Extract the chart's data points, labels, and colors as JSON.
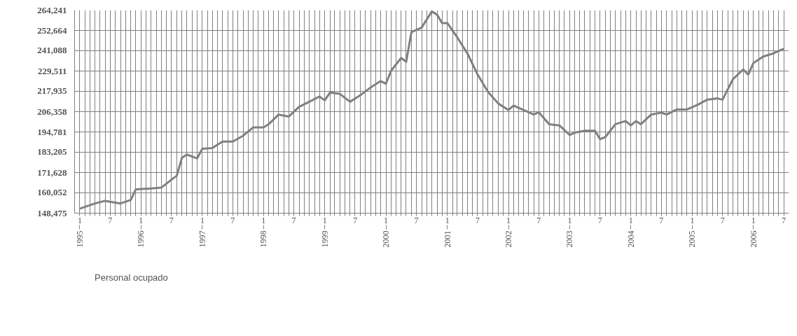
{
  "chart_data": {
    "type": "line",
    "x": [
      "1995-01",
      "1995-04",
      "1995-06",
      "1995-09",
      "1995-11",
      "1995-12",
      "1996-03",
      "1996-05",
      "1996-07",
      "1996-08",
      "1996-09",
      "1996-10",
      "1996-12",
      "1997-01",
      "1997-03",
      "1997-05",
      "1997-07",
      "1997-09",
      "1997-11",
      "1998-01",
      "1998-02",
      "1998-04",
      "1998-06",
      "1998-08",
      "1998-10",
      "1998-12",
      "1999-01",
      "1999-02",
      "1999-04",
      "1999-06",
      "1999-08",
      "1999-10",
      "1999-12",
      "2000-01",
      "2000-02",
      "2000-04",
      "2000-05",
      "2000-06",
      "2000-08",
      "2000-10",
      "2000-11",
      "2000-12",
      "2001-01",
      "2001-03",
      "2001-05",
      "2001-07",
      "2001-09",
      "2001-11",
      "2002-01",
      "2002-02",
      "2002-04",
      "2002-06",
      "2002-07",
      "2002-09",
      "2002-11",
      "2003-01",
      "2003-02",
      "2003-04",
      "2003-06",
      "2003-07",
      "2003-08",
      "2003-10",
      "2003-12",
      "2004-01",
      "2004-02",
      "2004-03",
      "2004-05",
      "2004-07",
      "2004-08",
      "2004-10",
      "2004-12",
      "2005-02",
      "2005-04",
      "2005-06",
      "2005-07",
      "2005-09",
      "2005-11",
      "2005-12",
      "2006-01",
      "2006-03",
      "2006-05",
      "2006-07"
    ],
    "series": [
      {
        "name": "Personal ocupado",
        "color": "#808080",
        "values": [
          151000,
          154000,
          155500,
          154000,
          156000,
          162000,
          162500,
          163000,
          167600,
          169800,
          180000,
          181900,
          179700,
          185200,
          185600,
          189300,
          189300,
          192600,
          197400,
          197400,
          199200,
          204700,
          203600,
          209100,
          212000,
          215000,
          212800,
          217200,
          216500,
          212000,
          215700,
          220100,
          223800,
          222300,
          229700,
          237000,
          234800,
          251700,
          254300,
          263500,
          261700,
          256900,
          256900,
          248800,
          239600,
          227500,
          217600,
          211000,
          207300,
          209800,
          207300,
          204700,
          206000,
          199200,
          198500,
          193000,
          194400,
          195500,
          195500,
          190700,
          191800,
          199200,
          201000,
          198500,
          201000,
          199200,
          204700,
          205800,
          204700,
          207600,
          207600,
          210200,
          213200,
          213900,
          213200,
          224900,
          230400,
          227500,
          234100,
          237800,
          239600,
          242200
        ]
      }
    ],
    "ylim": [
      148475,
      264241
    ],
    "yticks": [
      {
        "value": 148475,
        "label": "148,475"
      },
      {
        "value": 160052,
        "label": "160,052"
      },
      {
        "value": 171628,
        "label": "171,628"
      },
      {
        "value": 183205,
        "label": "183,205"
      },
      {
        "value": 194781,
        "label": "194,781"
      },
      {
        "value": 206358,
        "label": "206,358"
      },
      {
        "value": 217935,
        "label": "217,935"
      },
      {
        "value": 229511,
        "label": "229,511"
      },
      {
        "value": 241088,
        "label": "241,088"
      },
      {
        "value": 252664,
        "label": "252,664"
      },
      {
        "value": 264241,
        "label": "264,241"
      }
    ],
    "xlim": [
      "1994-12",
      "2006-08"
    ],
    "xticks": [
      {
        "value": "1995-01",
        "label": "1"
      },
      {
        "value": "1995-02",
        "label": null
      },
      {
        "value": "1995-03",
        "label": null
      },
      {
        "value": "1995-04",
        "label": null
      },
      {
        "value": "1995-05",
        "label": null
      },
      {
        "value": "1995-06",
        "label": null
      },
      {
        "value": "1995-07",
        "label": "7"
      },
      {
        "value": "1995-08",
        "label": null
      },
      {
        "value": "1995-09",
        "label": null
      },
      {
        "value": "1995-10",
        "label": null
      },
      {
        "value": "1995-11",
        "label": null
      },
      {
        "value": "1995-12",
        "label": null
      },
      {
        "value": "1996-01",
        "label": "1"
      },
      {
        "value": "1996-02",
        "label": null
      },
      {
        "value": "1996-03",
        "label": null
      },
      {
        "value": "1996-04",
        "label": null
      },
      {
        "value": "1996-05",
        "label": null
      },
      {
        "value": "1996-06",
        "label": null
      },
      {
        "value": "1996-07",
        "label": "7"
      },
      {
        "value": "1996-08",
        "label": null
      },
      {
        "value": "1996-09",
        "label": null
      },
      {
        "value": "1996-10",
        "label": null
      },
      {
        "value": "1996-11",
        "label": null
      },
      {
        "value": "1996-12",
        "label": null
      },
      {
        "value": "1997-01",
        "label": "1"
      },
      {
        "value": "1997-02",
        "label": null
      },
      {
        "value": "1997-03",
        "label": null
      },
      {
        "value": "1997-04",
        "label": null
      },
      {
        "value": "1997-05",
        "label": null
      },
      {
        "value": "1997-06",
        "label": null
      },
      {
        "value": "1997-07",
        "label": "7"
      },
      {
        "value": "1997-08",
        "label": null
      },
      {
        "value": "1997-09",
        "label": null
      },
      {
        "value": "1997-10",
        "label": null
      },
      {
        "value": "1997-11",
        "label": null
      },
      {
        "value": "1997-12",
        "label": null
      },
      {
        "value": "1998-01",
        "label": "1"
      },
      {
        "value": "1998-02",
        "label": null
      },
      {
        "value": "1998-03",
        "label": null
      },
      {
        "value": "1998-04",
        "label": null
      },
      {
        "value": "1998-05",
        "label": null
      },
      {
        "value": "1998-06",
        "label": null
      },
      {
        "value": "1998-07",
        "label": "7"
      },
      {
        "value": "1998-08",
        "label": null
      },
      {
        "value": "1998-09",
        "label": null
      },
      {
        "value": "1998-10",
        "label": null
      },
      {
        "value": "1998-11",
        "label": null
      },
      {
        "value": "1998-12",
        "label": null
      },
      {
        "value": "1999-01",
        "label": "1"
      },
      {
        "value": "1999-02",
        "label": null
      },
      {
        "value": "1999-03",
        "label": null
      },
      {
        "value": "1999-04",
        "label": null
      },
      {
        "value": "1999-05",
        "label": null
      },
      {
        "value": "1999-06",
        "label": null
      },
      {
        "value": "1999-07",
        "label": "7"
      },
      {
        "value": "1999-08",
        "label": null
      },
      {
        "value": "1999-09",
        "label": null
      },
      {
        "value": "1999-10",
        "label": null
      },
      {
        "value": "1999-11",
        "label": null
      },
      {
        "value": "1999-12",
        "label": null
      },
      {
        "value": "2000-01",
        "label": "1"
      },
      {
        "value": "2000-02",
        "label": null
      },
      {
        "value": "2000-03",
        "label": null
      },
      {
        "value": "2000-04",
        "label": null
      },
      {
        "value": "2000-05",
        "label": null
      },
      {
        "value": "2000-06",
        "label": null
      },
      {
        "value": "2000-07",
        "label": "7"
      },
      {
        "value": "2000-08",
        "label": null
      },
      {
        "value": "2000-09",
        "label": null
      },
      {
        "value": "2000-10",
        "label": null
      },
      {
        "value": "2000-11",
        "label": null
      },
      {
        "value": "2000-12",
        "label": null
      },
      {
        "value": "2001-01",
        "label": "1"
      },
      {
        "value": "2001-02",
        "label": null
      },
      {
        "value": "2001-03",
        "label": null
      },
      {
        "value": "2001-04",
        "label": null
      },
      {
        "value": "2001-05",
        "label": null
      },
      {
        "value": "2001-06",
        "label": null
      },
      {
        "value": "2001-07",
        "label": "7"
      },
      {
        "value": "2001-08",
        "label": null
      },
      {
        "value": "2001-09",
        "label": null
      },
      {
        "value": "2001-10",
        "label": null
      },
      {
        "value": "2001-11",
        "label": null
      },
      {
        "value": "2001-12",
        "label": null
      },
      {
        "value": "2002-01",
        "label": "1"
      },
      {
        "value": "2002-02",
        "label": null
      },
      {
        "value": "2002-03",
        "label": null
      },
      {
        "value": "2002-04",
        "label": null
      },
      {
        "value": "2002-05",
        "label": null
      },
      {
        "value": "2002-06",
        "label": null
      },
      {
        "value": "2002-07",
        "label": "7"
      },
      {
        "value": "2002-08",
        "label": null
      },
      {
        "value": "2002-09",
        "label": null
      },
      {
        "value": "2002-10",
        "label": null
      },
      {
        "value": "2002-11",
        "label": null
      },
      {
        "value": "2002-12",
        "label": null
      },
      {
        "value": "2003-01",
        "label": "1"
      },
      {
        "value": "2003-02",
        "label": null
      },
      {
        "value": "2003-03",
        "label": null
      },
      {
        "value": "2003-04",
        "label": null
      },
      {
        "value": "2003-05",
        "label": null
      },
      {
        "value": "2003-06",
        "label": null
      },
      {
        "value": "2003-07",
        "label": "7"
      },
      {
        "value": "2003-08",
        "label": null
      },
      {
        "value": "2003-09",
        "label": null
      },
      {
        "value": "2003-10",
        "label": null
      },
      {
        "value": "2003-11",
        "label": null
      },
      {
        "value": "2003-12",
        "label": null
      },
      {
        "value": "2004-01",
        "label": "1"
      },
      {
        "value": "2004-02",
        "label": null
      },
      {
        "value": "2004-03",
        "label": null
      },
      {
        "value": "2004-04",
        "label": null
      },
      {
        "value": "2004-05",
        "label": null
      },
      {
        "value": "2004-06",
        "label": null
      },
      {
        "value": "2004-07",
        "label": "7"
      },
      {
        "value": "2004-08",
        "label": null
      },
      {
        "value": "2004-09",
        "label": null
      },
      {
        "value": "2004-10",
        "label": null
      },
      {
        "value": "2004-11",
        "label": null
      },
      {
        "value": "2004-12",
        "label": null
      },
      {
        "value": "2005-01",
        "label": "1"
      },
      {
        "value": "2005-02",
        "label": null
      },
      {
        "value": "2005-03",
        "label": null
      },
      {
        "value": "2005-04",
        "label": null
      },
      {
        "value": "2005-05",
        "label": null
      },
      {
        "value": "2005-06",
        "label": null
      },
      {
        "value": "2005-07",
        "label": "7"
      },
      {
        "value": "2005-08",
        "label": null
      },
      {
        "value": "2005-09",
        "label": null
      },
      {
        "value": "2005-10",
        "label": null
      },
      {
        "value": "2005-11",
        "label": null
      },
      {
        "value": "2005-12",
        "label": null
      },
      {
        "value": "2006-01",
        "label": "1"
      },
      {
        "value": "2006-02",
        "label": null
      },
      {
        "value": "2006-03",
        "label": null
      },
      {
        "value": "2006-04",
        "label": null
      },
      {
        "value": "2006-05",
        "label": null
      },
      {
        "value": "2006-06",
        "label": null
      },
      {
        "value": "2006-07",
        "label": "7"
      }
    ],
    "x2lim": [
      "1994-12",
      "2006-08"
    ],
    "x2ticks": [
      {
        "value": "1995-01",
        "label": "1995"
      },
      {
        "value": "1996-01",
        "label": "1996"
      },
      {
        "value": "1997-01",
        "label": "1997"
      },
      {
        "value": "1998-01",
        "label": "1998"
      },
      {
        "value": "1999-01",
        "label": "1999"
      },
      {
        "value": "2000-01",
        "label": "2000"
      },
      {
        "value": "2001-01",
        "label": "2001"
      },
      {
        "value": "2002-01",
        "label": "2002"
      },
      {
        "value": "2003-01",
        "label": "2003"
      },
      {
        "value": "2004-01",
        "label": "2004"
      },
      {
        "value": "2005-01",
        "label": "2005"
      },
      {
        "value": "2006-01",
        "label": "2006"
      }
    ],
    "grid": true,
    "legend": "bottom left",
    "marker": "none",
    "line_style": "solid"
  }
}
